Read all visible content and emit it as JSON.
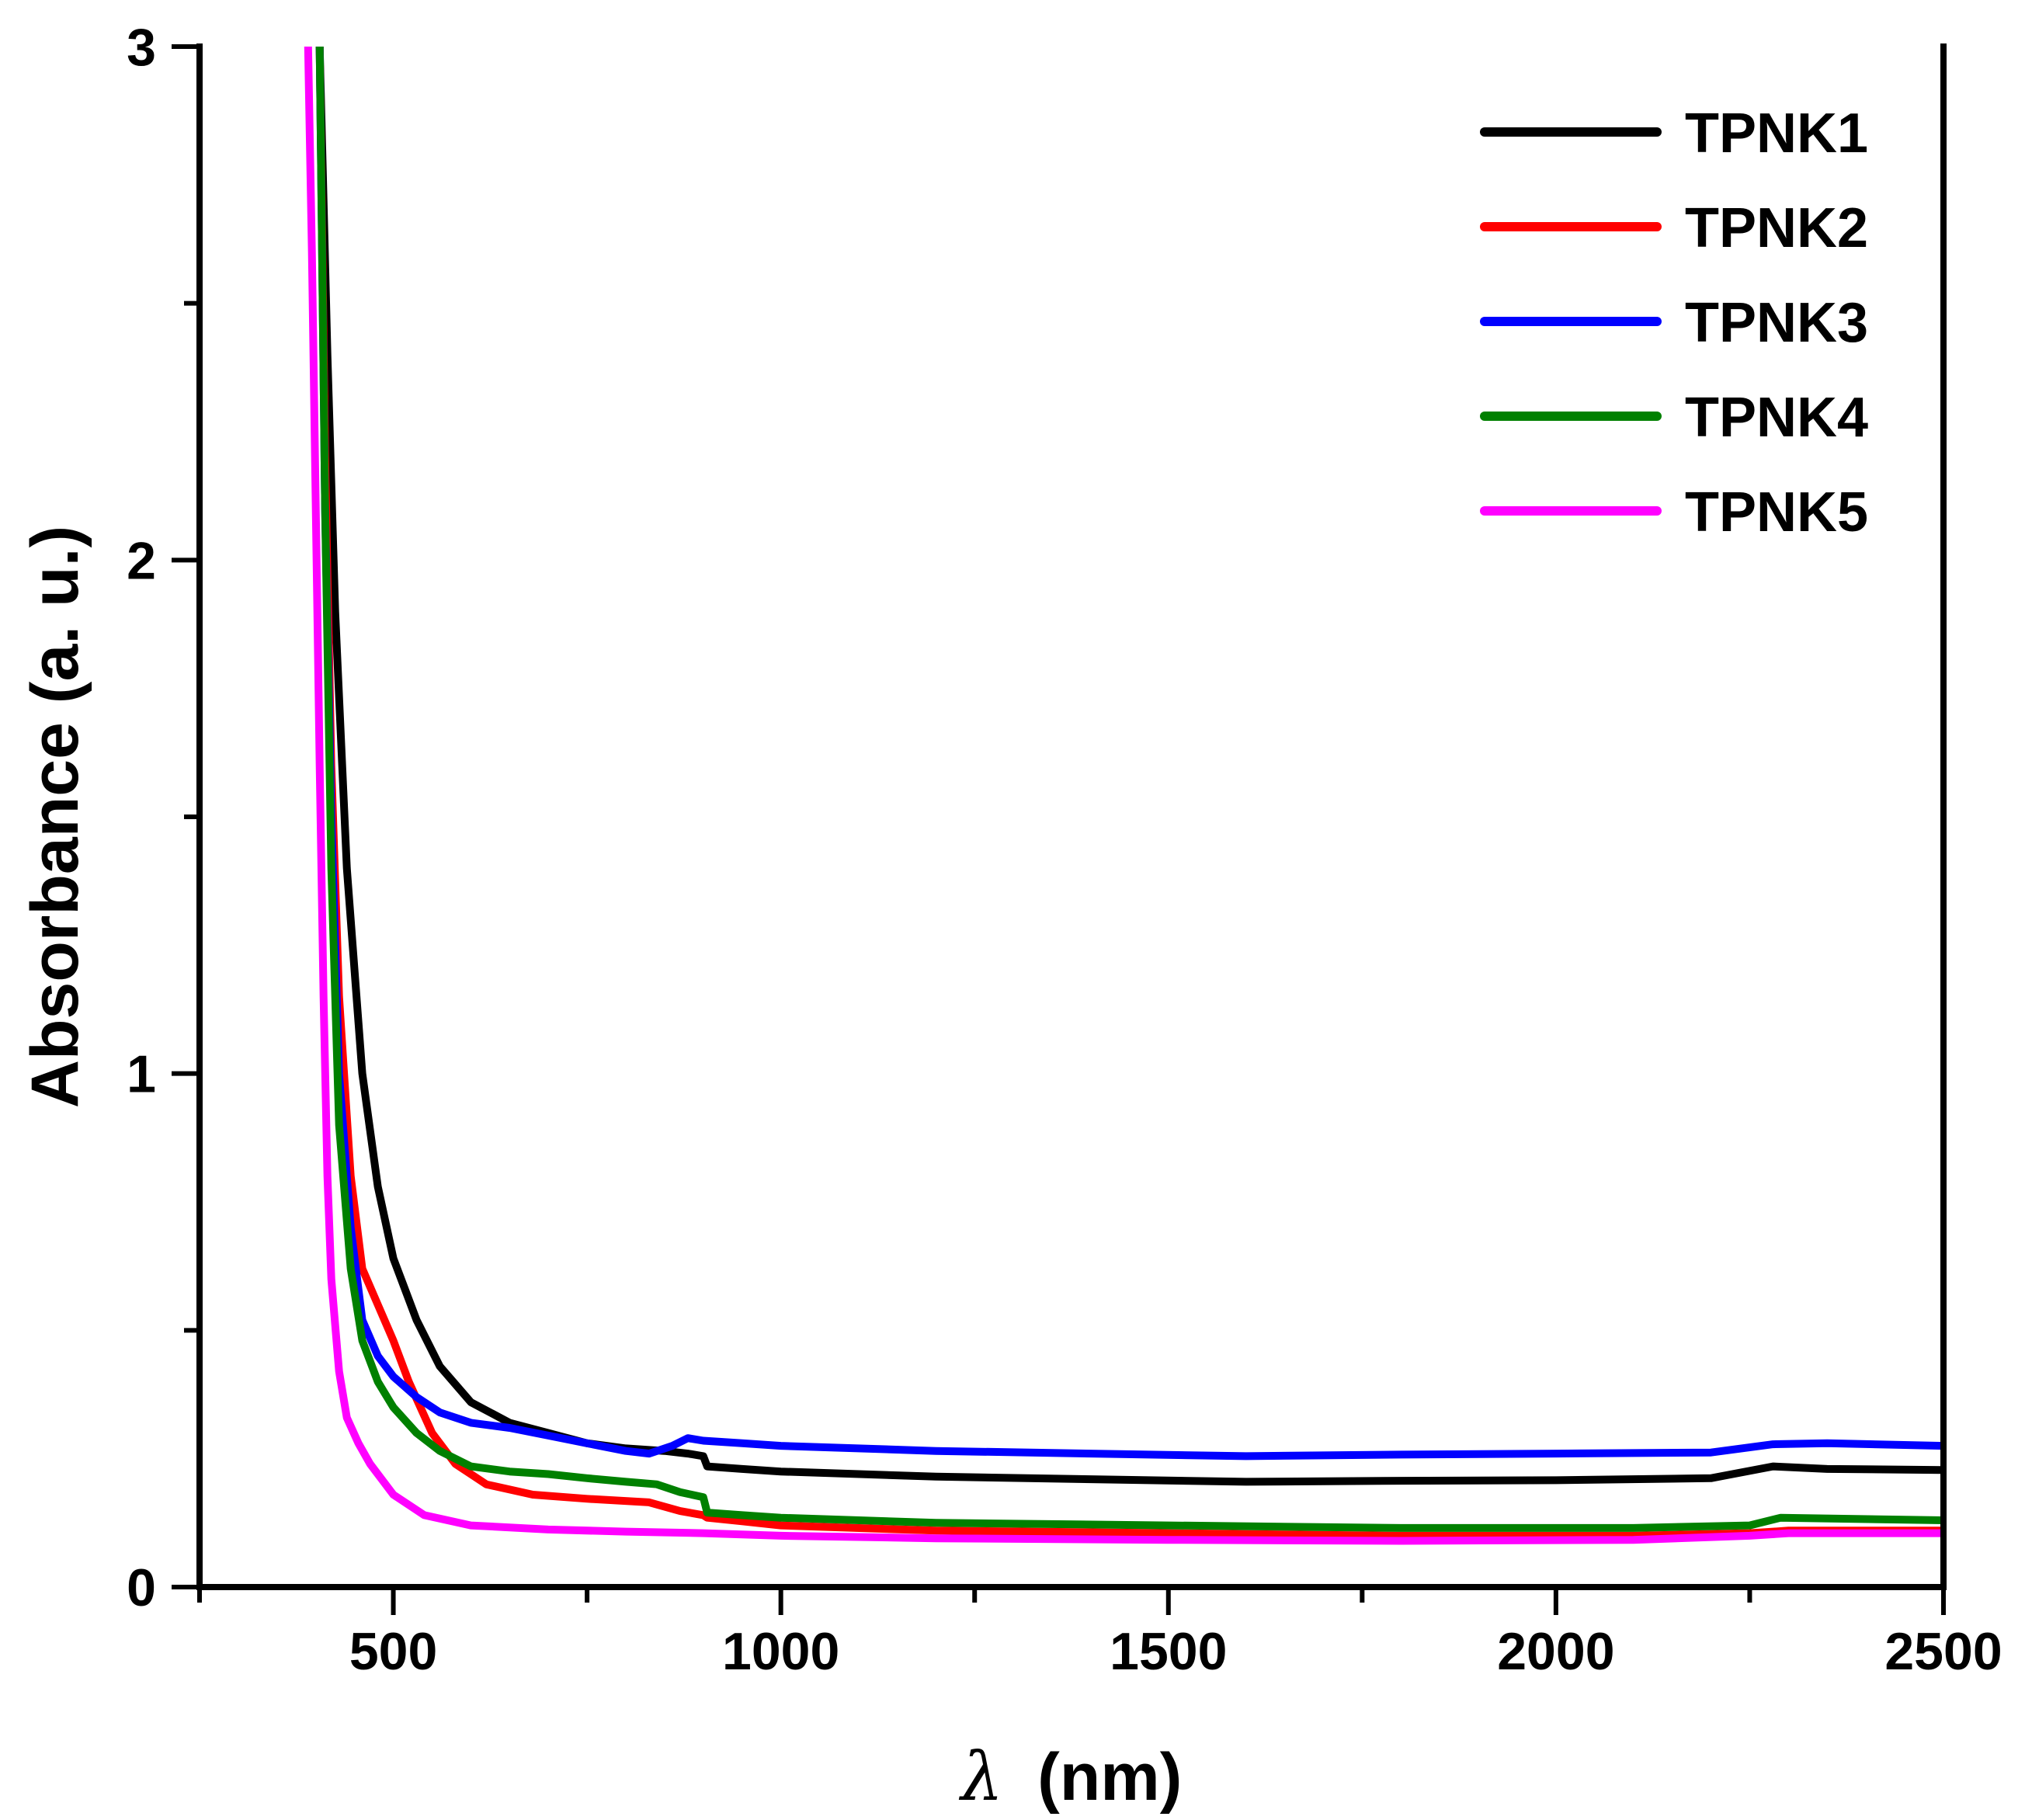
{
  "chart_data": {
    "type": "line",
    "title": "",
    "xlabel": "λ (nm)",
    "xlabel_symbol": "λ",
    "xlabel_unit": "(nm)",
    "ylabel": "Absorbance (a. u.)",
    "xlim": [
      250,
      2500
    ],
    "ylim": [
      0,
      3
    ],
    "x_major_ticks": [
      500,
      1000,
      1500,
      2000,
      2500
    ],
    "x_tick_labels": [
      "500",
      "1000",
      "1500",
      "2000",
      "2500"
    ],
    "x_minor_ticks": [
      250,
      750,
      1250,
      1750,
      2250
    ],
    "y_major_ticks": [
      0,
      1,
      2,
      3
    ],
    "y_tick_labels": [
      "0",
      "1",
      "2",
      "3"
    ],
    "y_minor_ticks": [
      0.5,
      1.5,
      2.5
    ],
    "legend_position": "top-right",
    "series": [
      {
        "name": "TPNK1",
        "color": "#000000",
        "x": [
          405,
          415,
          425,
          440,
          460,
          480,
          500,
          530,
          560,
          600,
          650,
          700,
          750,
          800,
          850,
          880,
          900,
          905,
          950,
          1000,
          1200,
          1400,
          1600,
          1800,
          2000,
          2200,
          2280,
          2350,
          2500
        ],
        "y": [
          3.0,
          2.4,
          1.9,
          1.4,
          1.0,
          0.78,
          0.64,
          0.52,
          0.43,
          0.36,
          0.32,
          0.3,
          0.28,
          0.27,
          0.265,
          0.26,
          0.255,
          0.235,
          0.23,
          0.225,
          0.215,
          0.21,
          0.205,
          0.207,
          0.208,
          0.212,
          0.235,
          0.23,
          0.228
        ]
      },
      {
        "name": "TPNK2",
        "color": "#ff0000",
        "x": [
          405,
          412,
          420,
          430,
          445,
          460,
          480,
          500,
          520,
          550,
          580,
          620,
          680,
          750,
          830,
          870,
          900,
          905,
          950,
          1000,
          1200,
          1500,
          1800,
          2100,
          2250,
          2300,
          2500
        ],
        "y": [
          3.0,
          2.2,
          1.6,
          1.15,
          0.8,
          0.62,
          0.55,
          0.48,
          0.4,
          0.3,
          0.24,
          0.2,
          0.18,
          0.172,
          0.165,
          0.148,
          0.14,
          0.135,
          0.128,
          0.12,
          0.11,
          0.105,
          0.1,
          0.1,
          0.105,
          0.11,
          0.11
        ]
      },
      {
        "name": "TPNK3",
        "color": "#0000ff",
        "x": [
          405,
          412,
          420,
          430,
          445,
          460,
          480,
          500,
          530,
          560,
          600,
          650,
          700,
          750,
          800,
          830,
          860,
          880,
          900,
          950,
          1000,
          1200,
          1400,
          1600,
          1800,
          2000,
          2200,
          2280,
          2350,
          2500
        ],
        "y": [
          3.0,
          2.1,
          1.5,
          1.0,
          0.7,
          0.52,
          0.45,
          0.41,
          0.37,
          0.34,
          0.32,
          0.31,
          0.295,
          0.28,
          0.265,
          0.26,
          0.275,
          0.29,
          0.285,
          0.28,
          0.275,
          0.265,
          0.26,
          0.255,
          0.258,
          0.26,
          0.262,
          0.278,
          0.28,
          0.275
        ]
      },
      {
        "name": "TPNK4",
        "color": "#008000",
        "x": [
          405,
          412,
          420,
          430,
          445,
          460,
          480,
          500,
          530,
          560,
          600,
          650,
          700,
          750,
          800,
          840,
          870,
          900,
          905,
          950,
          1000,
          1200,
          1500,
          1800,
          2100,
          2250,
          2290,
          2500
        ],
        "y": [
          3.0,
          2.1,
          1.4,
          0.9,
          0.62,
          0.48,
          0.4,
          0.35,
          0.3,
          0.265,
          0.235,
          0.225,
          0.22,
          0.212,
          0.205,
          0.2,
          0.185,
          0.175,
          0.145,
          0.14,
          0.135,
          0.125,
          0.12,
          0.115,
          0.115,
          0.12,
          0.135,
          0.13
        ]
      },
      {
        "name": "TPNK5",
        "color": "#ff00ff",
        "x": [
          390,
          395,
          400,
          405,
          410,
          415,
          420,
          430,
          440,
          455,
          470,
          500,
          540,
          600,
          700,
          800,
          900,
          1000,
          1200,
          1500,
          1800,
          2100,
          2250,
          2300,
          2500
        ],
        "y": [
          3.0,
          2.6,
          2.1,
          1.6,
          1.15,
          0.8,
          0.6,
          0.42,
          0.33,
          0.28,
          0.24,
          0.18,
          0.14,
          0.12,
          0.112,
          0.108,
          0.105,
          0.1,
          0.095,
          0.092,
          0.09,
          0.092,
          0.1,
          0.105,
          0.105
        ]
      }
    ]
  }
}
